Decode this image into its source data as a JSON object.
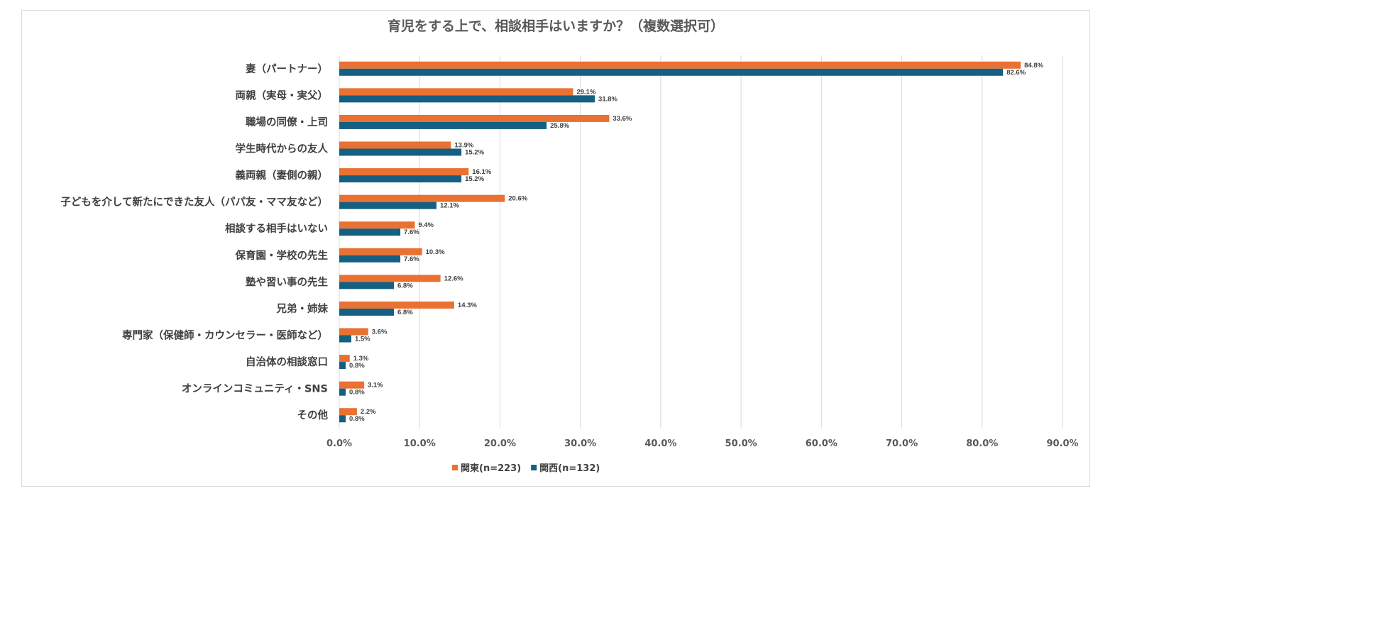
{
  "chart_data": {
    "type": "bar",
    "orientation": "horizontal",
    "title": "育児をする上で、相談相手はいますか？（複数選択可）",
    "categories": [
      "妻（パートナー）",
      "両親（実母・実父）",
      "職場の同僚・上司",
      "学生時代からの友人",
      "義両親（妻側の親）",
      "子どもを介して新たにできた友人（パパ友・ママ友など）",
      "相談する相手はいない",
      "保育園・学校の先生",
      "塾や習い事の先生",
      "兄弟・姉妹",
      "専門家（保健師・カウンセラー・医師など）",
      "自治体の相談窓口",
      "オンラインコミュニティ・SNS",
      "その他"
    ],
    "series": [
      {
        "name": "関東(n=223)",
        "color": "#E97132",
        "values": [
          84.8,
          29.1,
          33.6,
          13.9,
          16.1,
          20.6,
          9.4,
          10.3,
          12.6,
          14.3,
          3.6,
          1.3,
          3.1,
          2.2
        ]
      },
      {
        "name": "関西(n=132)",
        "color": "#156082",
        "values": [
          82.6,
          31.8,
          25.8,
          15.2,
          15.2,
          12.1,
          7.6,
          7.6,
          6.8,
          6.8,
          1.5,
          0.8,
          0.8,
          0.8
        ]
      }
    ],
    "xlim": [
      0,
      90
    ],
    "xticks": [
      "0.0%",
      "10.0%",
      "20.0%",
      "30.0%",
      "40.0%",
      "50.0%",
      "60.0%",
      "70.0%",
      "80.0%",
      "90.0%"
    ],
    "data_label_format": "%",
    "grid": "vertical",
    "legend": "bottom"
  }
}
